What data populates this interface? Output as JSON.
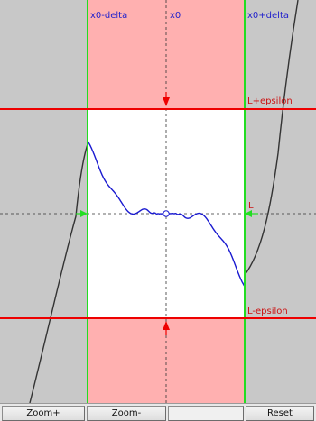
{
  "labels": {
    "x0_minus_delta": "x0-delta",
    "x0": "x0",
    "x0_plus_delta": "x0+delta",
    "l_plus_epsilon": "L+epsilon",
    "l": "L",
    "l_minus_epsilon": "L-epsilon"
  },
  "toolbar": {
    "zoom_in": "Zoom+",
    "zoom_out": "Zoom-",
    "reset": "Reset"
  },
  "colors": {
    "outside_band": "#c8c8c8",
    "delta_band": "#ffb0b0",
    "epsilon_box": "#ffffff",
    "delta_lines": "#22dd22",
    "epsilon_lines": "#ee0000",
    "curve_inside": "#1a1ad0",
    "curve_outside": "#333333",
    "x_label": "#2222cc",
    "y_label": "#cc1111"
  }
}
